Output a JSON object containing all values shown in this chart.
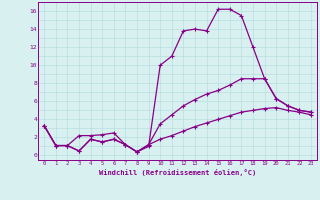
{
  "title": "",
  "xlabel": "Windchill (Refroidissement éolien,°C)",
  "xlim": [
    -0.5,
    23.5
  ],
  "ylim": [
    -0.5,
    17
  ],
  "xticks": [
    0,
    1,
    2,
    3,
    4,
    5,
    6,
    7,
    8,
    9,
    10,
    11,
    12,
    13,
    14,
    15,
    16,
    17,
    18,
    19,
    20,
    21,
    22,
    23
  ],
  "yticks": [
    0,
    2,
    4,
    6,
    8,
    10,
    12,
    14,
    16
  ],
  "bg_color": "#d8f0f0",
  "line_color": "#880088",
  "grid_color": "#b8dede",
  "line1_x": [
    0,
    1,
    2,
    3,
    4,
    5,
    6,
    7,
    8,
    9,
    10,
    11,
    12,
    13,
    14,
    15,
    16,
    17,
    18,
    19,
    20,
    21,
    22,
    23
  ],
  "line1_y": [
    3.3,
    1.1,
    1.1,
    2.2,
    2.2,
    2.3,
    2.5,
    1.2,
    0.4,
    1.0,
    10.0,
    11.0,
    13.8,
    14.0,
    13.8,
    16.2,
    16.2,
    15.5,
    12.0,
    8.5,
    6.3,
    5.5,
    5.0,
    4.8
  ],
  "line2_x": [
    0,
    1,
    2,
    3,
    4,
    5,
    6,
    7,
    8,
    9,
    10,
    11,
    12,
    13,
    14,
    15,
    16,
    17,
    18,
    19,
    20,
    21,
    22,
    23
  ],
  "line2_y": [
    3.3,
    1.1,
    1.1,
    0.5,
    1.8,
    1.5,
    1.8,
    1.2,
    0.4,
    1.2,
    3.5,
    4.5,
    5.5,
    6.2,
    6.8,
    7.2,
    7.8,
    8.5,
    8.5,
    8.5,
    6.3,
    5.5,
    5.0,
    4.8
  ],
  "line3_x": [
    0,
    1,
    2,
    3,
    4,
    5,
    6,
    7,
    8,
    9,
    10,
    11,
    12,
    13,
    14,
    15,
    16,
    17,
    18,
    19,
    20,
    21,
    22,
    23
  ],
  "line3_y": [
    3.3,
    1.1,
    1.1,
    0.5,
    1.8,
    1.5,
    1.8,
    1.2,
    0.4,
    1.2,
    1.8,
    2.2,
    2.7,
    3.2,
    3.6,
    4.0,
    4.4,
    4.8,
    5.0,
    5.2,
    5.3,
    5.0,
    4.8,
    4.5
  ]
}
